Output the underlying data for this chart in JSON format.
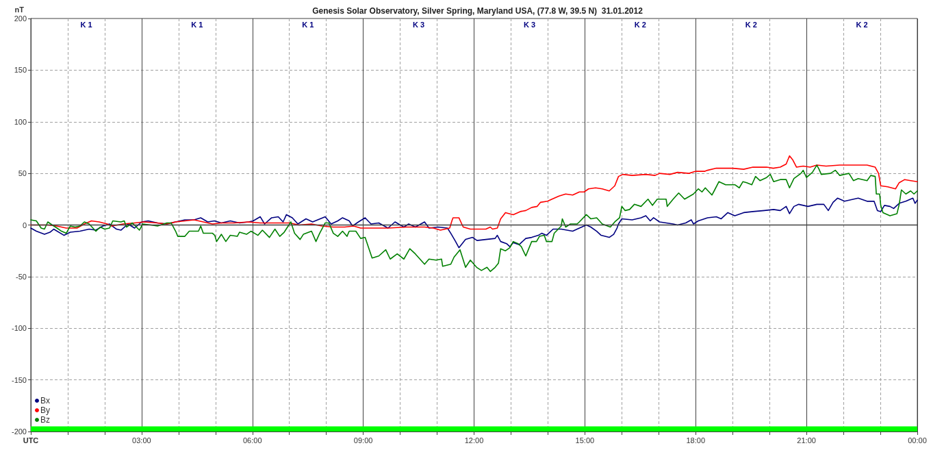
{
  "chart_data": {
    "type": "line",
    "title": "Genesis Solar Observatory, Silver Spring, Maryland USA, (77.8 W, 39.5 N)  31.01.2012",
    "ylabel": "nT",
    "xlim": [
      0,
      24
    ],
    "xticks": [
      {
        "value": 0,
        "label": "UTC"
      },
      {
        "value": 1,
        "label": null
      },
      {
        "value": 2,
        "label": null
      },
      {
        "value": 3,
        "label": "03:00"
      },
      {
        "value": 4,
        "label": null
      },
      {
        "value": 5,
        "label": null
      },
      {
        "value": 6,
        "label": "06:00"
      },
      {
        "value": 7,
        "label": null
      },
      {
        "value": 8,
        "label": null
      },
      {
        "value": 9,
        "label": "09:00"
      },
      {
        "value": 10,
        "label": null
      },
      {
        "value": 11,
        "label": null
      },
      {
        "value": 12,
        "label": "12:00"
      },
      {
        "value": 13,
        "label": null
      },
      {
        "value": 14,
        "label": null
      },
      {
        "value": 15,
        "label": "15:00"
      },
      {
        "value": 16,
        "label": null
      },
      {
        "value": 17,
        "label": null
      },
      {
        "value": 18,
        "label": "18:00"
      },
      {
        "value": 19,
        "label": null
      },
      {
        "value": 20,
        "label": null
      },
      {
        "value": 21,
        "label": "21:00"
      },
      {
        "value": 22,
        "label": null
      },
      {
        "value": 23,
        "label": null
      },
      {
        "value": 24,
        "label": "00:00"
      }
    ],
    "ylim": [
      -200,
      200
    ],
    "yticks": [
      -200,
      -150,
      -100,
      -50,
      0,
      50,
      100,
      150,
      200
    ],
    "grid": true,
    "legend": "bottom left",
    "series": [
      {
        "name": "Bx",
        "color": "#000080",
        "x": [
          0,
          0.15,
          0.37,
          0.52,
          0.62,
          0.9,
          1.07,
          1.33,
          1.58,
          1.76,
          1.95,
          2.13,
          2.32,
          2.44,
          2.63,
          2.81,
          3,
          3.18,
          3.43,
          3.68,
          3.92,
          4.17,
          4.42,
          4.6,
          4.79,
          4.97,
          5.16,
          5.4,
          5.65,
          5.9,
          6.02,
          6.21,
          6.33,
          6.52,
          6.7,
          6.83,
          6.92,
          7.08,
          7.23,
          7.45,
          7.63,
          7.97,
          8.13,
          8.31,
          8.44,
          8.62,
          8.71,
          8.87,
          9.05,
          9.21,
          9.42,
          9.67,
          9.86,
          10.1,
          10.23,
          10.41,
          10.66,
          10.78,
          11.03,
          11.28,
          11.37,
          11.5,
          11.59,
          11.77,
          11.96,
          12.08,
          12.32,
          12.57,
          12.63,
          12.72,
          12.88,
          12.97,
          13.06,
          13.22,
          13.4,
          13.56,
          13.74,
          13.83,
          13.96,
          14.14,
          14.36,
          14.67,
          14.79,
          15.04,
          15.16,
          15.32,
          15.44,
          15.66,
          15.78,
          15.87,
          15.91,
          16,
          16.28,
          16.52,
          16.65,
          16.77,
          16.86,
          17.02,
          17.39,
          17.51,
          17.73,
          17.88,
          17.94,
          18.07,
          18.32,
          18.56,
          18.69,
          18.87,
          19.06,
          19.3,
          19.55,
          19.86,
          20.11,
          20.29,
          20.45,
          20.54,
          20.66,
          20.79,
          21.04,
          21.28,
          21.47,
          21.59,
          21.72,
          21.84,
          22.03,
          22.4,
          22.64,
          22.83,
          22.92,
          23.01,
          23.11,
          23.26,
          23.36,
          23.51,
          23.69,
          23.88,
          23.94,
          24
        ],
        "values": [
          -3,
          -6,
          -9,
          -7,
          -4,
          -10,
          -7,
          -6,
          -4,
          -5,
          -1,
          1,
          -4,
          -5,
          1,
          -3,
          3,
          4,
          2,
          1,
          3,
          5,
          5,
          7,
          3,
          4,
          2,
          4,
          2,
          3,
          4,
          8,
          1,
          7,
          8,
          3,
          10,
          7,
          1,
          6,
          3,
          8,
          1,
          4,
          7,
          4,
          -1,
          3,
          7,
          1,
          2,
          -3,
          3,
          -2,
          1,
          -2,
          3,
          -3,
          -2,
          -3,
          -8,
          -16,
          -22,
          -14,
          -12,
          -15,
          -14,
          -13,
          -10,
          -16,
          -18,
          -21,
          -17,
          -19,
          -13,
          -12,
          -10,
          -8,
          -10,
          -4,
          -4,
          -6,
          -4,
          0,
          -2,
          -6,
          -10,
          -12,
          -9,
          -3,
          1,
          6,
          5,
          7,
          9,
          4,
          7,
          3,
          1,
          0,
          2,
          5,
          1,
          4,
          7,
          8,
          6,
          12,
          9,
          12,
          13,
          14,
          15,
          14,
          18,
          11,
          18,
          20,
          18,
          20,
          20,
          14,
          22,
          26,
          23,
          26,
          23,
          23,
          14,
          13,
          19,
          18,
          16,
          21,
          23,
          26,
          21,
          24
        ]
      },
      {
        "name": "By",
        "color": "#ff0000",
        "x": [
          0,
          0.46,
          0.7,
          0.96,
          1.25,
          1.45,
          1.64,
          1.85,
          2.07,
          2.19,
          2.5,
          2.81,
          3.06,
          3.43,
          3.68,
          3.92,
          4.17,
          4.42,
          4.67,
          4.92,
          5.16,
          5.5,
          5.9,
          6.21,
          6.8,
          7.01,
          7.26,
          7.6,
          7.88,
          8.19,
          8.5,
          8.74,
          8.93,
          9.3,
          9.67,
          10.17,
          10.66,
          10.9,
          11.09,
          11.34,
          11.4,
          11.43,
          11.59,
          11.68,
          11.71,
          11.9,
          12.14,
          12.32,
          12.44,
          12.5,
          12.63,
          12.72,
          12.85,
          13.06,
          13.25,
          13.4,
          13.56,
          13.71,
          13.8,
          13.99,
          14.11,
          14.3,
          14.48,
          14.67,
          14.85,
          14.98,
          15.1,
          15.29,
          15.47,
          15.66,
          15.81,
          15.91,
          16.03,
          16.28,
          16.65,
          16.9,
          17.02,
          17.3,
          17.51,
          17.82,
          18,
          18.25,
          18.32,
          18.56,
          19,
          19.3,
          19.55,
          19.92,
          20.1,
          20.29,
          20.45,
          20.54,
          20.63,
          20.73,
          20.91,
          21.1,
          21.28,
          21.53,
          21.9,
          22.27,
          22.64,
          22.86,
          22.95,
          23.01,
          23.2,
          23.41,
          23.51,
          23.66,
          23.82,
          24
        ],
        "values": [
          0,
          0,
          -1,
          -3,
          -3,
          1,
          4,
          3,
          1,
          -1,
          1,
          2,
          3,
          2,
          1,
          3,
          4,
          5,
          3,
          1,
          2,
          2,
          3,
          2,
          2,
          2,
          0,
          1,
          -1,
          -2,
          -2,
          -1,
          -3,
          -3,
          -3,
          -2,
          -2,
          -3,
          -5,
          -3,
          4,
          7,
          7,
          0,
          -2,
          -4,
          -4,
          -4,
          -2,
          -4,
          -3,
          6,
          12,
          10,
          13,
          14,
          17,
          18,
          22,
          23,
          25,
          28,
          30,
          29,
          32,
          32,
          35,
          36,
          35,
          33,
          38,
          47,
          49,
          48,
          49,
          48,
          50,
          49,
          51,
          50,
          52,
          52,
          53,
          55,
          55,
          54,
          56,
          56,
          55,
          56,
          59,
          67,
          63,
          56,
          57,
          56,
          58,
          57,
          58,
          58,
          58,
          56,
          50,
          38,
          37,
          35,
          41,
          44,
          43,
          42
        ]
      },
      {
        "name": "Bz",
        "color": "#008000",
        "x": [
          0,
          0.15,
          0.28,
          0.37,
          0.46,
          0.58,
          0.71,
          0.83,
          0.96,
          1.02,
          1.07,
          1.2,
          1.33,
          1.45,
          1.58,
          1.76,
          1.88,
          2,
          2.13,
          2.22,
          2.44,
          2.53,
          2.59,
          2.75,
          2.94,
          3.03,
          3.25,
          3.43,
          3.68,
          3.8,
          3.92,
          3.98,
          4.17,
          4.29,
          4.54,
          4.6,
          4.67,
          4.92,
          4.98,
          5.03,
          5.16,
          5.28,
          5.4,
          5.59,
          5.65,
          5.84,
          5.96,
          6.15,
          6.27,
          6.46,
          6.61,
          6.74,
          6.86,
          7.04,
          7.14,
          7.29,
          7.38,
          7.6,
          7.72,
          7.82,
          7.97,
          8.07,
          8.19,
          8.31,
          8.44,
          8.56,
          8.62,
          8.8,
          8.93,
          9.05,
          9.24,
          9.42,
          9.61,
          9.73,
          9.92,
          10.1,
          10.26,
          10.41,
          10.66,
          10.78,
          10.97,
          11.12,
          11.15,
          11.37,
          11.46,
          11.62,
          11.77,
          11.9,
          12.02,
          12.07,
          12.2,
          12.35,
          12.44,
          12.57,
          12.66,
          12.72,
          12.85,
          12.97,
          13.06,
          13.19,
          13.28,
          13.4,
          13.56,
          13.69,
          13.77,
          13.9,
          13.96,
          14.11,
          14.17,
          14.36,
          14.39,
          14.48,
          14.61,
          14.79,
          14.85,
          15.04,
          15.16,
          15.32,
          15.47,
          15.69,
          15.81,
          15.94,
          16,
          16.09,
          16.21,
          16.34,
          16.52,
          16.71,
          16.83,
          16.96,
          17.2,
          17.23,
          17.39,
          17.54,
          17.7,
          17.94,
          18.07,
          18.17,
          18.26,
          18.44,
          18.5,
          18.63,
          18.81,
          19.06,
          19.18,
          19.28,
          19.38,
          19.52,
          19.62,
          19.74,
          19.92,
          20.02,
          20.11,
          20.29,
          20.45,
          20.54,
          20.66,
          20.85,
          20.91,
          21,
          21.16,
          21.28,
          21.34,
          21.4,
          21.65,
          21.78,
          21.9,
          22.15,
          22.27,
          22.4,
          22.64,
          22.74,
          22.86,
          22.89,
          22.98,
          23.01,
          23.07,
          23.26,
          23.45,
          23.51,
          23.57,
          23.69,
          23.82,
          23.91,
          24
        ],
        "values": [
          5,
          4,
          -3,
          -4,
          3,
          0,
          -3,
          -6,
          -8,
          -4,
          -1,
          -2,
          -1,
          3,
          1,
          -6,
          -2,
          -4,
          -3,
          4,
          3,
          4,
          -2,
          2,
          -5,
          1,
          0,
          -1,
          2,
          2,
          -6,
          -11,
          -11,
          -6,
          -6,
          -1,
          -8,
          -8,
          -10,
          -16,
          -9,
          -16,
          -10,
          -11,
          -7,
          -9,
          -6,
          -10,
          -5,
          -12,
          -4,
          -11,
          -7,
          3,
          -8,
          -14,
          -9,
          -6,
          -16,
          -8,
          2,
          2,
          -8,
          -11,
          -6,
          -11,
          -6,
          -6,
          -13,
          -12,
          -32,
          -30,
          -24,
          -33,
          -28,
          -33,
          -23,
          -28,
          -38,
          -33,
          -34,
          -33,
          -40,
          -38,
          -31,
          -24,
          -41,
          -34,
          -39,
          -41,
          -44,
          -41,
          -45,
          -41,
          -37,
          -23,
          -25,
          -22,
          -16,
          -18,
          -21,
          -30,
          -16,
          -16,
          -11,
          -10,
          -16,
          -16,
          -8,
          -1,
          6,
          -2,
          1,
          1,
          3,
          10,
          6,
          7,
          1,
          -2,
          3,
          7,
          18,
          14,
          15,
          20,
          18,
          25,
          19,
          25,
          25,
          18,
          25,
          31,
          25,
          30,
          35,
          32,
          36,
          29,
          33,
          42,
          39,
          39,
          36,
          42,
          41,
          39,
          47,
          43,
          46,
          49,
          42,
          44,
          44,
          36,
          45,
          50,
          53,
          46,
          51,
          58,
          54,
          49,
          50,
          53,
          48,
          50,
          43,
          45,
          43,
          48,
          47,
          30,
          30,
          19,
          12,
          9,
          11,
          20,
          34,
          30,
          33,
          30,
          33
        ]
      }
    ],
    "annotations": [
      "K 1",
      "K 1",
      "K 1",
      "K 3",
      "K 3",
      "K 2",
      "K 2",
      "K 2"
    ],
    "ref_lines": [
      {
        "axis": "y",
        "value": 0,
        "color": "#404040"
      }
    ],
    "bands": [
      {
        "axis": "y",
        "from": -200,
        "to": -195,
        "color": "#00ff00"
      }
    ]
  }
}
